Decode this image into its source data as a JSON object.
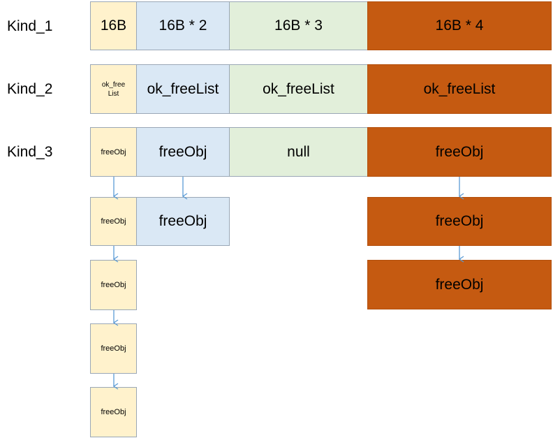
{
  "rows": {
    "kind1": {
      "label": "Kind_1",
      "cells": [
        "16B",
        "16B * 2",
        "16B * 3",
        "16B * 4"
      ]
    },
    "kind2": {
      "label": "Kind_2",
      "cells": [
        "ok_free\nList",
        "ok_freeList",
        "ok_freeList",
        "ok_freeList"
      ]
    },
    "kind3": {
      "label": "Kind_3",
      "cells": [
        "freeObj",
        "freeObj",
        "null",
        "freeObj"
      ]
    }
  },
  "chains": {
    "col1": [
      "freeObj",
      "freeObj",
      "freeObj",
      "freeObj"
    ],
    "col2": [
      "freeObj"
    ],
    "col4": [
      "freeObj",
      "freeObj"
    ]
  },
  "colors": {
    "yellow": "#fff2cc",
    "blue": "#dae8f5",
    "green": "#e2efda",
    "orange": "#c55a11",
    "arrow": "#5b9bd5"
  }
}
